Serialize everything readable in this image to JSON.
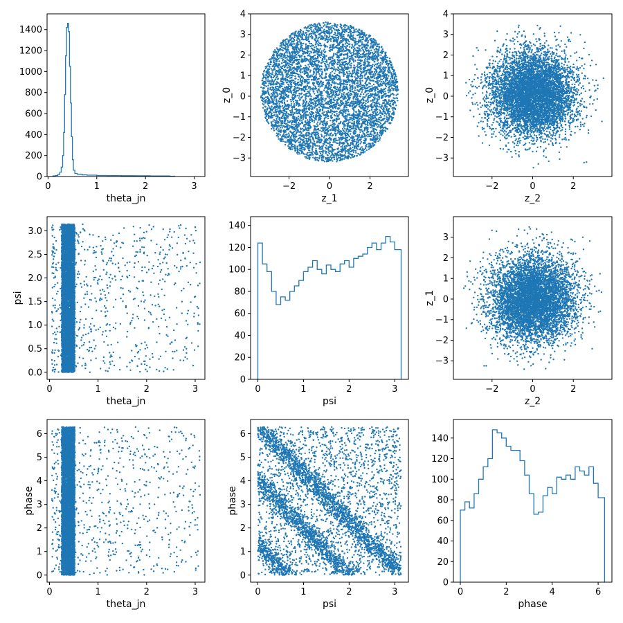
{
  "series_color": "#1f77b4",
  "chart_data": [
    {
      "id": "p00",
      "type": "histogram",
      "xlabel": "theta_jn",
      "ylabel": "",
      "xlim": [
        -0.02,
        3.22
      ],
      "ylim": [
        0,
        1550
      ],
      "xticks": [
        0,
        1,
        2,
        3
      ],
      "yticks": [
        0,
        200,
        400,
        600,
        800,
        1000,
        1200,
        1400
      ],
      "histogram": {
        "x": [
          0.02,
          0.1,
          0.15,
          0.2,
          0.24,
          0.27,
          0.3,
          0.32,
          0.34,
          0.36,
          0.38,
          0.4,
          0.42,
          0.44,
          0.46,
          0.48,
          0.5,
          0.52,
          0.55,
          0.6,
          0.7,
          0.8,
          1.0,
          1.2,
          1.5,
          1.8,
          2.1,
          2.3,
          2.5,
          2.6
        ],
        "y": [
          0,
          5,
          10,
          20,
          40,
          90,
          200,
          420,
          780,
          1150,
          1420,
          1460,
          1380,
          1050,
          700,
          380,
          160,
          60,
          30,
          22,
          16,
          13,
          10,
          9,
          8,
          7,
          6,
          5,
          3,
          0
        ]
      }
    },
    {
      "id": "p01",
      "type": "scatter",
      "xlabel": "z_1",
      "ylabel": "z_0",
      "xlim": [
        -3.9,
        3.9
      ],
      "ylim": [
        -3.9,
        4.0
      ],
      "xticks": [
        -2,
        0,
        2
      ],
      "yticks": [
        -3,
        -2,
        -1,
        0,
        1,
        2,
        3,
        4
      ],
      "scatter": {
        "n_points": 6000,
        "x_center": 0,
        "y_center": 0.2,
        "x_spread": 3.4,
        "y_spread": 3.4,
        "shape": "disk"
      }
    },
    {
      "id": "p02",
      "type": "scatter",
      "xlabel": "z_2",
      "ylabel": "z_0",
      "xlim": [
        -3.9,
        3.9
      ],
      "ylim": [
        -3.9,
        4.0
      ],
      "xticks": [
        -2,
        0,
        2
      ],
      "yticks": [
        -3,
        -2,
        -1,
        0,
        1,
        2,
        3,
        4
      ],
      "scatter": {
        "n_points": 6000,
        "x_center": 0,
        "y_center": 0.1,
        "x_spread": 3.5,
        "y_spread": 3.5,
        "shape": "gaussian"
      }
    },
    {
      "id": "p10",
      "type": "scatter",
      "xlabel": "theta_jn",
      "ylabel": "psi",
      "xlim": [
        -0.05,
        3.2
      ],
      "ylim": [
        -0.15,
        3.3
      ],
      "xticks": [
        0,
        1,
        2,
        3
      ],
      "yticks": [
        0.0,
        0.5,
        1.0,
        1.5,
        2.0,
        2.5,
        3.0
      ],
      "scatter": {
        "n_points": 6500,
        "band_x": [
          0.25,
          0.52
        ],
        "band_y": [
          0,
          3.14
        ],
        "outlier_points": 700,
        "outlier_x": [
          0.05,
          3.1
        ]
      }
    },
    {
      "id": "p11",
      "type": "histogram",
      "xlabel": "psi",
      "ylabel": "",
      "xlim": [
        -0.16,
        3.3
      ],
      "ylim": [
        0,
        148
      ],
      "xticks": [
        0,
        1,
        2,
        3
      ],
      "yticks": [
        0,
        20,
        40,
        60,
        80,
        100,
        120,
        140
      ],
      "histogram": {
        "x": [
          0.0,
          0.1,
          0.2,
          0.3,
          0.4,
          0.5,
          0.6,
          0.7,
          0.8,
          0.9,
          1.0,
          1.1,
          1.2,
          1.3,
          1.4,
          1.5,
          1.6,
          1.7,
          1.8,
          1.9,
          2.0,
          2.1,
          2.2,
          2.3,
          2.4,
          2.5,
          2.6,
          2.7,
          2.8,
          2.9,
          3.0,
          3.14
        ],
        "y": [
          124,
          105,
          98,
          80,
          68,
          75,
          72,
          80,
          85,
          90,
          98,
          102,
          108,
          100,
          96,
          104,
          100,
          98,
          105,
          108,
          102,
          110,
          112,
          114,
          120,
          124,
          118,
          124,
          130,
          125,
          118,
          0
        ]
      }
    },
    {
      "id": "p12",
      "type": "scatter",
      "xlabel": "z_2",
      "ylabel": "z_1",
      "xlim": [
        -3.9,
        3.9
      ],
      "ylim": [
        -3.9,
        4.0
      ],
      "xticks": [
        -2,
        0,
        2
      ],
      "yticks": [
        -3,
        -2,
        -1,
        0,
        1,
        2,
        3
      ],
      "scatter": {
        "n_points": 6000,
        "x_center": 0,
        "y_center": 0,
        "x_spread": 3.5,
        "y_spread": 3.5,
        "shape": "gaussian"
      }
    },
    {
      "id": "p20",
      "type": "scatter",
      "xlabel": "theta_jn",
      "ylabel": "phase",
      "xlim": [
        -0.05,
        3.2
      ],
      "ylim": [
        -0.3,
        6.6
      ],
      "xticks": [
        0,
        1,
        2,
        3
      ],
      "yticks": [
        0,
        1,
        2,
        3,
        4,
        5,
        6
      ],
      "scatter": {
        "n_points": 6500,
        "band_x": [
          0.25,
          0.52
        ],
        "band_y": [
          0,
          6.28
        ],
        "outlier_points": 700,
        "outlier_x": [
          0.05,
          3.1
        ]
      }
    },
    {
      "id": "p21",
      "type": "scatter",
      "xlabel": "psi",
      "ylabel": "phase",
      "xlim": [
        -0.16,
        3.3
      ],
      "ylim": [
        -0.3,
        6.6
      ],
      "xticks": [
        0,
        1,
        2,
        3
      ],
      "yticks": [
        0,
        1,
        2,
        3,
        4,
        5,
        6
      ],
      "scatter": {
        "n_points": 7000,
        "diagonal_bands": [
          [
            4.0,
            -2.0
          ],
          [
            6.3,
            -2.0
          ],
          [
            1.3,
            -2.0
          ]
        ],
        "background_points": 2000
      }
    },
    {
      "id": "p22",
      "type": "histogram",
      "xlabel": "phase",
      "ylabel": "",
      "xlim": [
        -0.3,
        6.6
      ],
      "ylim": [
        0,
        158
      ],
      "xticks": [
        0,
        2,
        4,
        6
      ],
      "yticks": [
        0,
        20,
        40,
        60,
        80,
        100,
        120,
        140
      ],
      "histogram": {
        "x": [
          0.0,
          0.2,
          0.4,
          0.6,
          0.8,
          1.0,
          1.2,
          1.4,
          1.6,
          1.8,
          2.0,
          2.2,
          2.4,
          2.6,
          2.8,
          3.0,
          3.2,
          3.4,
          3.6,
          3.8,
          4.0,
          4.2,
          4.4,
          4.6,
          4.8,
          5.0,
          5.2,
          5.4,
          5.6,
          5.8,
          6.0,
          6.28
        ],
        "y": [
          70,
          78,
          72,
          86,
          100,
          112,
          120,
          148,
          145,
          140,
          132,
          128,
          128,
          118,
          104,
          86,
          66,
          68,
          84,
          92,
          86,
          102,
          100,
          104,
          100,
          112,
          108,
          104,
          112,
          96,
          82,
          0
        ]
      }
    }
  ]
}
